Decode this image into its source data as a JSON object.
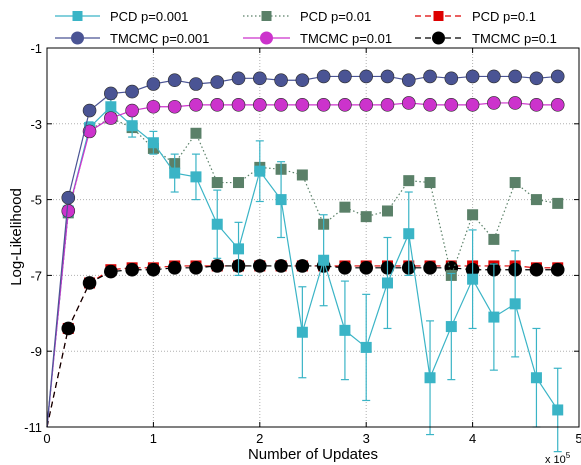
{
  "chart_data": {
    "type": "line",
    "xlabel": "Number of Updates",
    "ylabel": "Log-Likelihood",
    "x_exponent_label": "x 10",
    "x_exponent_power": "5",
    "xlim": [
      0,
      5
    ],
    "ylim": [
      -11,
      -1
    ],
    "xticks": [
      "0",
      "1",
      "2",
      "3",
      "4",
      "5"
    ],
    "yticks": [
      "-11",
      "-9",
      "-7",
      "-5",
      "-3",
      "-1"
    ],
    "grid": true,
    "legend_placement": "top",
    "x": [
      0,
      0.2,
      0.4,
      0.6,
      0.8,
      1.0,
      1.2,
      1.4,
      1.6,
      1.8,
      2.0,
      2.2,
      2.4,
      2.6,
      2.8,
      3.0,
      3.2,
      3.4,
      3.6,
      3.8,
      4.0,
      4.2,
      4.4,
      4.6,
      4.8
    ],
    "series": [
      {
        "name": "PCD p=0.001",
        "color": "#3ab4c6",
        "marker": "square",
        "line": "solid",
        "y": [
          -11,
          -5.3,
          -3.1,
          -2.55,
          -3.05,
          -3.5,
          -4.3,
          -4.4,
          -5.65,
          -6.3,
          -4.25,
          -5.0,
          -8.5,
          -6.6,
          -8.45,
          -8.9,
          -7.2,
          -5.9,
          -9.7,
          -8.35,
          -7.1,
          -8.1,
          -7.75,
          -9.7,
          -10.55
        ],
        "err": [
          0,
          0.15,
          0.15,
          0.2,
          0.3,
          0.3,
          0.5,
          0.6,
          0.9,
          0.7,
          0.8,
          1.0,
          1.2,
          1.2,
          1.3,
          1.4,
          1.2,
          1.1,
          1.5,
          1.4,
          1.3,
          1.4,
          1.4,
          1.3,
          1.1
        ]
      },
      {
        "name": "PCD p=0.01",
        "color": "#5a8068",
        "marker": "square",
        "line": "dotted",
        "y": [
          -11,
          -5.35,
          -3.15,
          -2.85,
          -3.1,
          -3.65,
          -4.05,
          -3.25,
          -4.55,
          -4.55,
          -4.15,
          -4.2,
          -4.35,
          -5.65,
          -5.2,
          -5.45,
          -5.3,
          -4.5,
          -4.55,
          -7.0,
          -5.4,
          -6.05,
          -4.55,
          -5.0,
          -5.1
        ]
      },
      {
        "name": "PCD p=0.1",
        "color": "#dd0000",
        "marker": "square",
        "line": "dashed",
        "y": [
          -11,
          -8.4,
          -7.2,
          -6.85,
          -6.8,
          -6.8,
          -6.75,
          -6.75,
          -6.75,
          -6.75,
          -6.75,
          -6.75,
          -6.75,
          -6.75,
          -6.75,
          -6.75,
          -6.75,
          -6.75,
          -6.75,
          -6.75,
          -6.75,
          -6.75,
          -6.75,
          -6.8,
          -6.8
        ]
      },
      {
        "name": "TMCMC p=0.001",
        "color": "#4a5494",
        "marker": "circle",
        "line": "solid",
        "y": [
          -11,
          -4.95,
          -2.65,
          -2.2,
          -2.15,
          -1.95,
          -1.85,
          -1.95,
          -1.9,
          -1.8,
          -1.8,
          -1.85,
          -1.85,
          -1.75,
          -1.75,
          -1.75,
          -1.75,
          -1.85,
          -1.75,
          -1.8,
          -1.75,
          -1.75,
          -1.75,
          -1.8,
          -1.75
        ]
      },
      {
        "name": "TMCMC p=0.01",
        "color": "#cc33cc",
        "marker": "circle",
        "line": "solid",
        "y": [
          -11,
          -5.3,
          -3.2,
          -2.85,
          -2.65,
          -2.55,
          -2.55,
          -2.5,
          -2.5,
          -2.5,
          -2.5,
          -2.5,
          -2.5,
          -2.5,
          -2.5,
          -2.5,
          -2.5,
          -2.45,
          -2.5,
          -2.5,
          -2.5,
          -2.45,
          -2.45,
          -2.5,
          -2.5
        ]
      },
      {
        "name": "TMCMC p=0.1",
        "color": "#000000",
        "marker": "circle",
        "line": "dashed",
        "y": [
          -11,
          -8.4,
          -7.2,
          -6.9,
          -6.85,
          -6.85,
          -6.8,
          -6.8,
          -6.75,
          -6.75,
          -6.75,
          -6.75,
          -6.75,
          -6.75,
          -6.8,
          -6.8,
          -6.8,
          -6.8,
          -6.8,
          -6.8,
          -6.85,
          -6.85,
          -6.85,
          -6.85,
          -6.85
        ]
      }
    ]
  }
}
